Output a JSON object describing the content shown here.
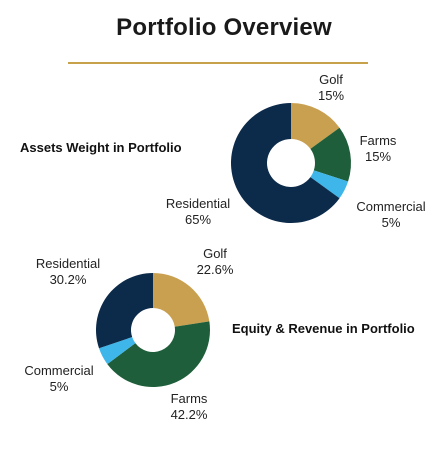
{
  "page": {
    "title": "Portfolio Overview"
  },
  "colors": {
    "divider": "#c8a24a",
    "golf": "#c9a04f",
    "farms": "#1f5e3a",
    "commercial": "#3fb6ea",
    "residential": "#0c2a4a"
  },
  "chart_data": [
    {
      "type": "pie",
      "title": "Assets Weight in Portfolio",
      "slices": [
        {
          "name": "Golf",
          "value": 15,
          "label": "15%",
          "color": "#c9a04f"
        },
        {
          "name": "Farms",
          "value": 15,
          "label": "15%",
          "color": "#1f5e3a"
        },
        {
          "name": "Commercial",
          "value": 5,
          "label": "5%",
          "color": "#3fb6ea"
        },
        {
          "name": "Residential",
          "value": 65,
          "label": "65%",
          "color": "#0c2a4a"
        }
      ]
    },
    {
      "type": "pie",
      "title": "Equity & Revenue in Portfolio",
      "slices": [
        {
          "name": "Golf",
          "value": 22.6,
          "label": "22.6%",
          "color": "#c9a04f"
        },
        {
          "name": "Farms",
          "value": 42.2,
          "label": "42.2%",
          "color": "#1f5e3a"
        },
        {
          "name": "Commercial",
          "value": 5,
          "label": "5%",
          "color": "#3fb6ea"
        },
        {
          "name": "Residential",
          "value": 30.2,
          "label": "30.2%",
          "color": "#0c2a4a"
        }
      ]
    }
  ]
}
